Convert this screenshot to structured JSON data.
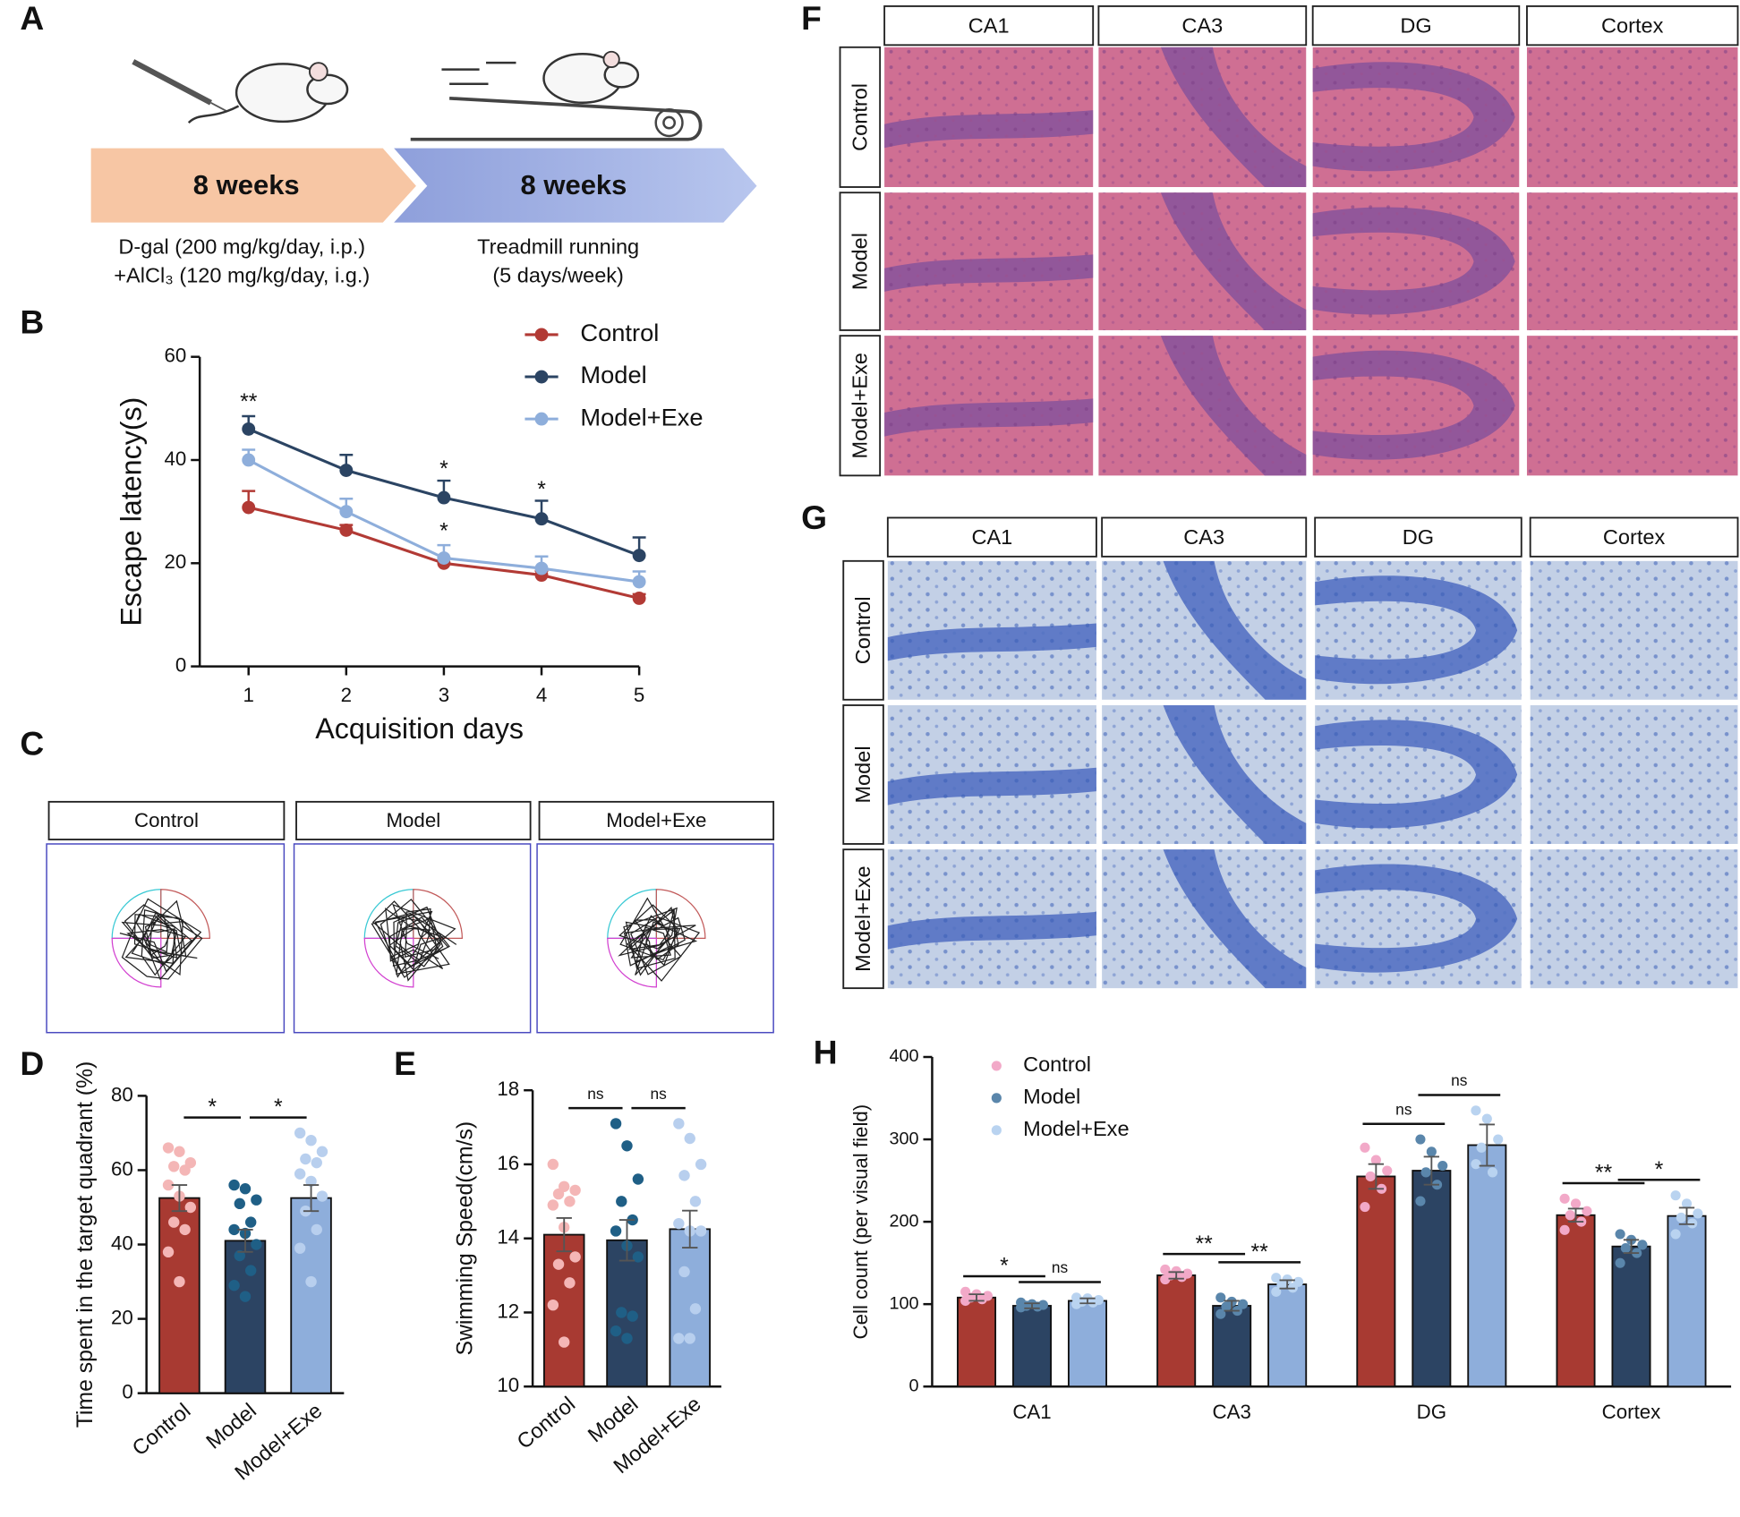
{
  "panel_labels": [
    "A",
    "B",
    "C",
    "D",
    "E",
    "F",
    "G",
    "H"
  ],
  "panel_a": {
    "phases": [
      {
        "duration": "8 weeks",
        "lines": [
          "D-gal (200 mg/kg/day, i.p.)",
          "+AlCl₃ (120 mg/kg/day, i.g.)"
        ]
      },
      {
        "duration": "8 weeks",
        "lines": [
          "Treadmill running",
          "(5 days/week)"
        ]
      }
    ]
  },
  "panel_c": {
    "groups": [
      "Control",
      "Model",
      "Model+Exe"
    ]
  },
  "panel_f": {
    "columns": [
      "CA1",
      "CA3",
      "DG",
      "Cortex"
    ],
    "rows": [
      "Control",
      "Model",
      "Model+Exe"
    ]
  },
  "panel_g": {
    "columns": [
      "CA1",
      "CA3",
      "DG",
      "Cortex"
    ],
    "rows": [
      "Control",
      "Model",
      "Model+Exe"
    ]
  },
  "chart_data": [
    {
      "type": "line",
      "x": [
        1,
        2,
        3,
        4,
        5
      ],
      "xlim": [
        0.5,
        5
      ],
      "xticks": [
        1,
        2,
        3,
        4,
        5
      ],
      "ylim": [
        0,
        60
      ],
      "yticks": [
        0,
        20,
        40,
        60
      ],
      "xlabel": "Acquisition days",
      "ylabel": "Escape latency(s)",
      "legend": "top-right",
      "series": [
        {
          "name": "Control",
          "color": "#b23a35",
          "values": [
            30.8,
            26.4,
            20,
            17.7,
            13.2
          ],
          "errors": [
            3.2,
            1,
            1,
            0.8,
            0.8
          ]
        },
        {
          "name": "Model",
          "color": "#2b4463",
          "values": [
            46,
            38,
            32.7,
            28.6,
            21.5
          ],
          "errors": [
            2.5,
            3,
            3.3,
            3.5,
            3.5
          ]
        },
        {
          "name": "Model+Exe",
          "color": "#8eaedb",
          "values": [
            40,
            30,
            21,
            19,
            16.4
          ],
          "errors": [
            2,
            2.5,
            2.5,
            2.3,
            2
          ]
        }
      ],
      "annotations": [
        {
          "text": "**",
          "x": 1,
          "y": 51
        },
        {
          "text": "*",
          "x": 3,
          "y": 38
        },
        {
          "text": "*",
          "x": 3,
          "y": 26
        },
        {
          "text": "*",
          "x": 4,
          "y": 34
        }
      ]
    },
    {
      "type": "bar",
      "categories": [
        "Control",
        "Model",
        "Model+Exe"
      ],
      "values": [
        52.5,
        41,
        52.5
      ],
      "errors": [
        3.5,
        3,
        3.5
      ],
      "colors": [
        "#a83a32",
        "#2c4463",
        "#8eaedb"
      ],
      "point_colors": [
        "#f4b6b6",
        "#1f5f86",
        "#b8cfee"
      ],
      "points": [
        [
          66,
          65,
          62,
          61,
          60,
          56,
          53,
          50,
          46,
          44,
          38,
          30
        ],
        [
          56,
          55,
          52,
          51,
          46,
          44,
          43,
          40,
          37,
          33,
          29,
          26
        ],
        [
          70,
          68,
          65,
          63,
          62,
          59,
          57,
          53,
          49,
          44,
          39,
          30
        ]
      ],
      "ylim": [
        0,
        80
      ],
      "yticks": [
        0,
        20,
        40,
        60,
        80
      ],
      "ylabel": "Time spent in the target quadrant (%)",
      "significance": [
        "*",
        "*"
      ]
    },
    {
      "type": "bar",
      "categories": [
        "Control",
        "Model",
        "Model+Exe"
      ],
      "values": [
        14.1,
        13.95,
        14.25
      ],
      "errors": [
        0.45,
        0.55,
        0.5
      ],
      "colors": [
        "#a83a32",
        "#2c4463",
        "#8eaedb"
      ],
      "point_colors": [
        "#f4b6b6",
        "#1f5f86",
        "#b8cfee"
      ],
      "points": [
        [
          16,
          15.4,
          15.3,
          15.2,
          15,
          14.9,
          14.3,
          13.5,
          13.3,
          12.8,
          12.2,
          11.2
        ],
        [
          17.1,
          16.5,
          15.6,
          15,
          14.5,
          14.2,
          13.8,
          13.5,
          12,
          11.9,
          11.5,
          11.3
        ],
        [
          17.1,
          16.7,
          16,
          15.7,
          15,
          14.4,
          14.2,
          14.2,
          13.1,
          12.1,
          11.3,
          11.3
        ]
      ],
      "ylim": [
        10,
        18
      ],
      "yticks": [
        10,
        12,
        14,
        16,
        18
      ],
      "ylabel": "Swimming Speed(cm/s)",
      "significance": [
        "ns",
        "ns"
      ]
    },
    {
      "type": "grouped_bar",
      "categories": [
        "CA1",
        "CA3",
        "DG",
        "Cortex"
      ],
      "ylim": [
        0,
        400
      ],
      "yticks": [
        0,
        100,
        200,
        300,
        400
      ],
      "ylabel": "Cell count (per visual field)",
      "legend": "top-left",
      "series": [
        {
          "name": "Control",
          "color": "#a83a32",
          "point_color": "#f2a9c8",
          "values": [
            108,
            135,
            255,
            208
          ],
          "errors": [
            4,
            4,
            15,
            8
          ],
          "points": [
            [
              115,
              112,
              110,
              108,
              106,
              104
            ],
            [
              142,
              140,
              137,
              135,
              133,
              130
            ],
            [
              290,
              275,
              262,
              255,
              240,
              218
            ],
            [
              228,
              222,
              213,
              208,
              200,
              190
            ]
          ]
        },
        {
          "name": "Model",
          "color": "#2c4463",
          "point_color": "#5a86ab",
          "values": [
            98,
            98,
            262,
            170
          ],
          "errors": [
            3,
            6,
            17,
            8
          ],
          "points": [
            [
              102,
              100,
              99,
              98,
              97,
              96
            ],
            [
              108,
              103,
              100,
              97,
              92,
              88
            ],
            [
              300,
              285,
              268,
              260,
              245,
              225
            ],
            [
              185,
              178,
              172,
              168,
              162,
              150
            ]
          ]
        },
        {
          "name": "Model+Exe",
          "color": "#8eaedb",
          "point_color": "#b9d3f0",
          "values": [
            104,
            124,
            293,
            207
          ],
          "errors": [
            3,
            5,
            25,
            10
          ],
          "points": [
            [
              108,
              107,
              105,
              103,
              102,
              100
            ],
            [
              132,
              130,
              127,
              124,
              120,
              115
            ],
            [
              335,
              325,
              300,
              290,
              260,
              270
            ],
            [
              232,
              222,
              210,
              205,
              198,
              185
            ]
          ]
        }
      ],
      "significance": [
        [
          "*",
          "ns"
        ],
        [
          "**",
          "**"
        ],
        [
          "ns",
          "ns"
        ],
        [
          "**",
          "*"
        ]
      ]
    }
  ]
}
